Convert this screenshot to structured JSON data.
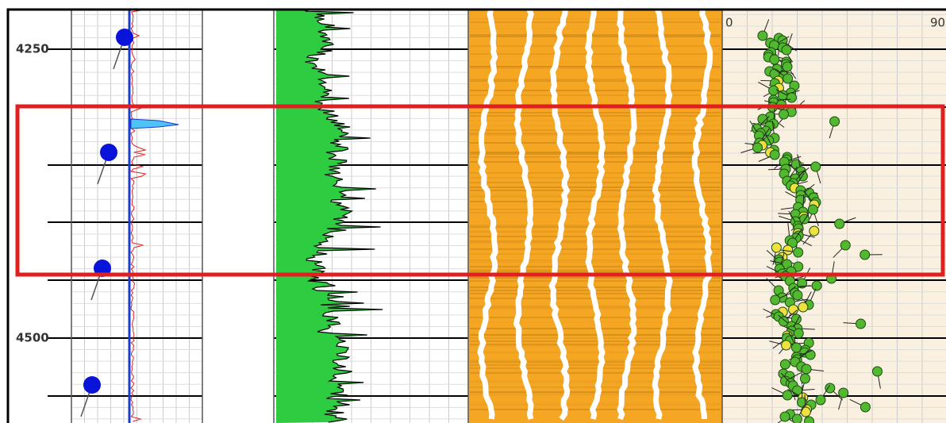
{
  "depth_track": {
    "labels": [
      "4250",
      "4500"
    ]
  },
  "dip_track": {
    "scale": [
      "0",
      "90"
    ]
  }
}
